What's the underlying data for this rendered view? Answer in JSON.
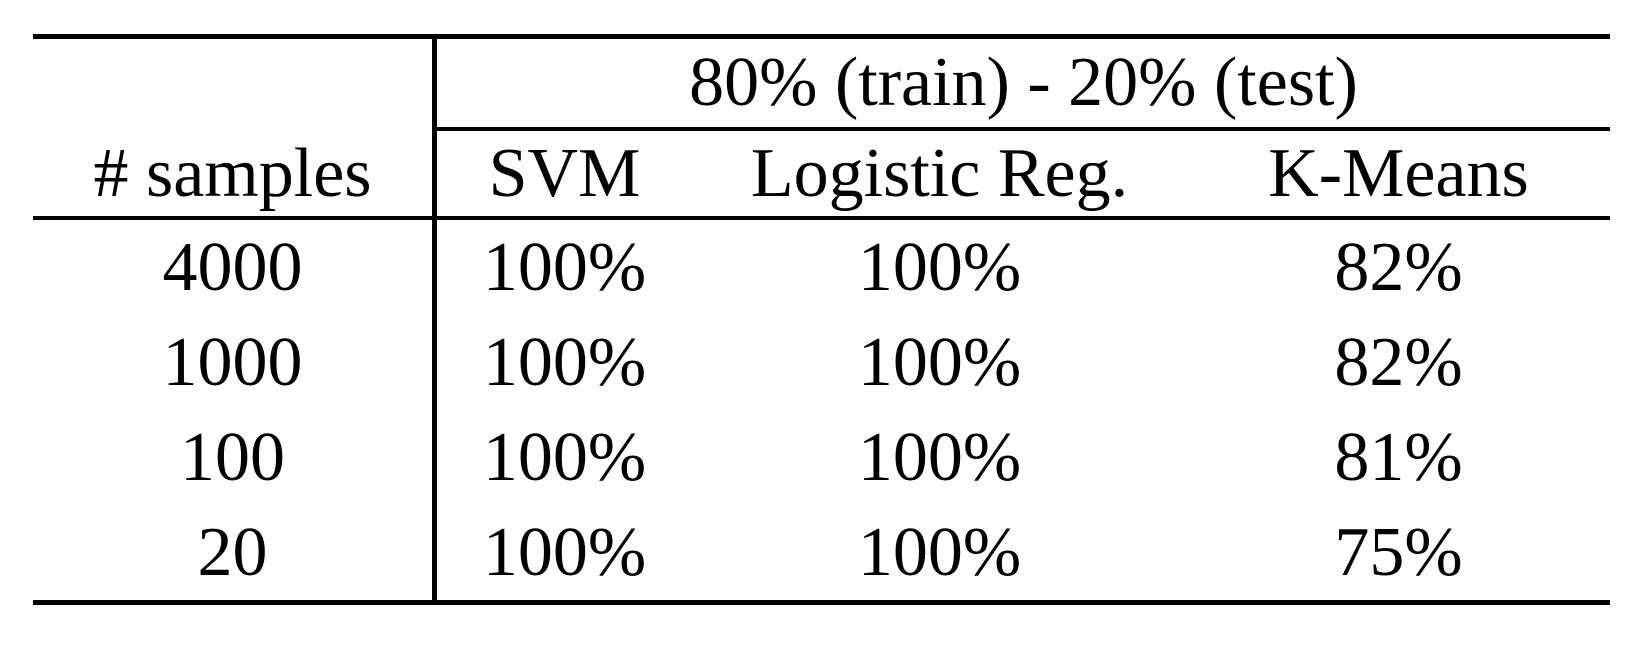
{
  "table": {
    "span_header": "80% (train) - 20% (test)",
    "row_header_label": "# samples",
    "columns": [
      "SVM",
      "Logistic Reg.",
      "K-Means"
    ],
    "rows": [
      {
        "samples": "4000",
        "values": [
          "100%",
          "100%",
          "82%"
        ]
      },
      {
        "samples": "1000",
        "values": [
          "100%",
          "100%",
          "82%"
        ]
      },
      {
        "samples": "100",
        "values": [
          "100%",
          "100%",
          "81%"
        ]
      },
      {
        "samples": "20",
        "values": [
          "100%",
          "100%",
          "75%"
        ]
      }
    ]
  },
  "chart_data": {
    "type": "table",
    "title": "80% (train) - 20% (test)",
    "row_label": "# samples",
    "columns": [
      "SVM",
      "Logistic Reg.",
      "K-Means"
    ],
    "categories": [
      4000,
      1000,
      100,
      20
    ],
    "series": [
      {
        "name": "SVM",
        "values": [
          "100%",
          "100%",
          "100%",
          "100%"
        ]
      },
      {
        "name": "Logistic Reg.",
        "values": [
          "100%",
          "100%",
          "100%",
          "100%"
        ]
      },
      {
        "name": "K-Means",
        "values": [
          "82%",
          "82%",
          "81%",
          "75%"
        ]
      }
    ]
  },
  "colors": {
    "text": "#000000",
    "background": "#ffffff",
    "rule": "#000000"
  }
}
